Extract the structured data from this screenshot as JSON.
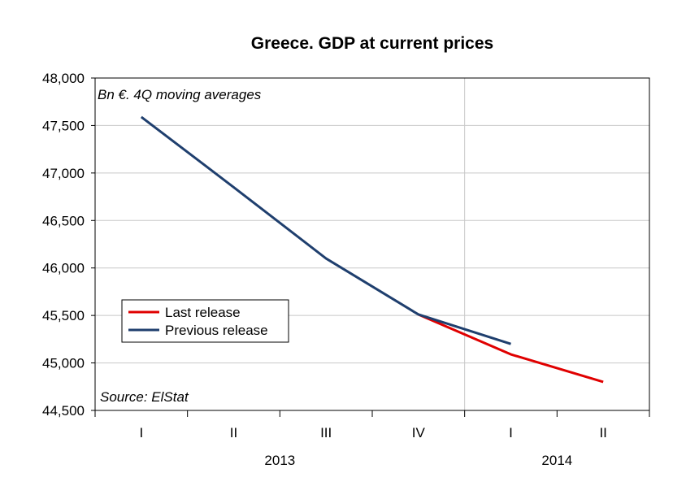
{
  "chart_data": {
    "type": "line",
    "title": "Greece. GDP at current prices",
    "subtitle": "Bn €. 4Q moving averages",
    "source": "Source: ElStat",
    "xlabel": "",
    "ylabel": "",
    "categories": [
      "I",
      "II",
      "III",
      "IV",
      "I",
      "II"
    ],
    "year_labels": [
      {
        "label": "2013",
        "start": 0,
        "end": 3
      },
      {
        "label": "2014",
        "start": 4,
        "end": 5
      }
    ],
    "ylim": [
      44500,
      48000
    ],
    "yticks": [
      44500,
      45000,
      45500,
      46000,
      46500,
      47000,
      47500,
      48000
    ],
    "ytick_labels": [
      "44,500",
      "45,000",
      "45,500",
      "46,000",
      "46,500",
      "47,000",
      "47,500",
      "48,000"
    ],
    "grid": true,
    "legend_position": "middle-left",
    "series": [
      {
        "name": "Last release",
        "color": "#e00000",
        "values": [
          null,
          null,
          null,
          45510,
          45090,
          44800
        ]
      },
      {
        "name": "Previous release",
        "color": "#1f3f6e",
        "values": [
          47590,
          46850,
          46100,
          45510,
          45200,
          null
        ]
      }
    ]
  }
}
